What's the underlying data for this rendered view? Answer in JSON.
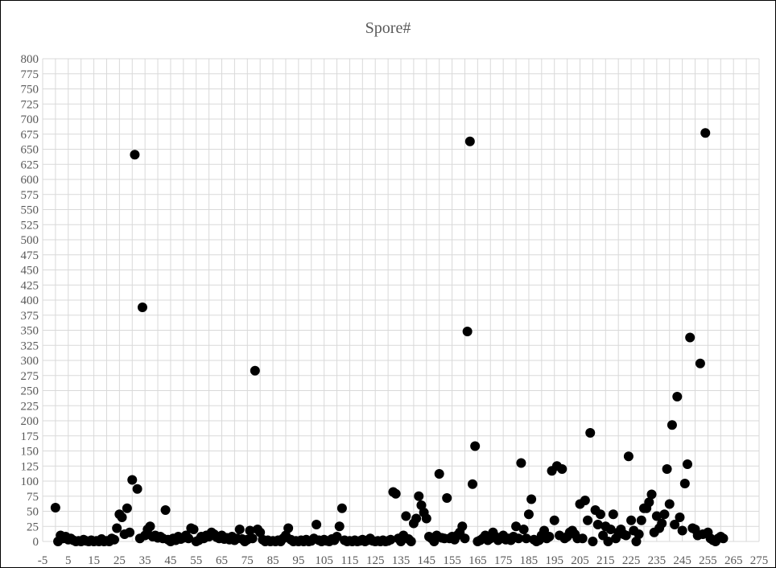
{
  "chart_data": {
    "type": "scatter",
    "title": "Spore#",
    "xlabel": "",
    "ylabel": "",
    "xlim": [
      -5,
      275
    ],
    "ylim": [
      0,
      800
    ],
    "x_ticks": [
      -5,
      5,
      15,
      25,
      35,
      45,
      55,
      65,
      75,
      85,
      95,
      105,
      115,
      125,
      135,
      145,
      155,
      165,
      175,
      185,
      195,
      205,
      215,
      225,
      235,
      245,
      255,
      265,
      275
    ],
    "y_ticks": [
      0,
      25,
      50,
      75,
      100,
      125,
      150,
      175,
      200,
      225,
      250,
      275,
      300,
      325,
      350,
      375,
      400,
      425,
      450,
      475,
      500,
      525,
      550,
      575,
      600,
      625,
      650,
      675,
      700,
      725,
      750,
      775,
      800
    ],
    "grid": true,
    "marker_color": "#000000",
    "series": [
      {
        "name": "",
        "points": [
          [
            0,
            56
          ],
          [
            1,
            0
          ],
          [
            2,
            10
          ],
          [
            3,
            5
          ],
          [
            4,
            8
          ],
          [
            5,
            3
          ],
          [
            6,
            5
          ],
          [
            7,
            2
          ],
          [
            8,
            0
          ],
          [
            9,
            1
          ],
          [
            10,
            0
          ],
          [
            11,
            3
          ],
          [
            12,
            1
          ],
          [
            13,
            0
          ],
          [
            14,
            2
          ],
          [
            15,
            0
          ],
          [
            16,
            1
          ],
          [
            17,
            0
          ],
          [
            18,
            4
          ],
          [
            19,
            0
          ],
          [
            20,
            1
          ],
          [
            21,
            0
          ],
          [
            22,
            5
          ],
          [
            23,
            3
          ],
          [
            24,
            22
          ],
          [
            25,
            45
          ],
          [
            26,
            40
          ],
          [
            27,
            12
          ],
          [
            28,
            55
          ],
          [
            29,
            15
          ],
          [
            30,
            102
          ],
          [
            31,
            641
          ],
          [
            32,
            87
          ],
          [
            33,
            5
          ],
          [
            34,
            388
          ],
          [
            35,
            10
          ],
          [
            36,
            20
          ],
          [
            37,
            25
          ],
          [
            38,
            8
          ],
          [
            39,
            10
          ],
          [
            40,
            6
          ],
          [
            41,
            8
          ],
          [
            42,
            5
          ],
          [
            43,
            52
          ],
          [
            44,
            3
          ],
          [
            45,
            0
          ],
          [
            46,
            5
          ],
          [
            47,
            2
          ],
          [
            48,
            8
          ],
          [
            49,
            4
          ],
          [
            50,
            6
          ],
          [
            51,
            10
          ],
          [
            52,
            5
          ],
          [
            53,
            22
          ],
          [
            54,
            20
          ],
          [
            55,
            0
          ],
          [
            56,
            2
          ],
          [
            57,
            8
          ],
          [
            58,
            5
          ],
          [
            59,
            10
          ],
          [
            60,
            8
          ],
          [
            61,
            15
          ],
          [
            62,
            12
          ],
          [
            63,
            7
          ],
          [
            64,
            5
          ],
          [
            65,
            10
          ],
          [
            66,
            4
          ],
          [
            67,
            6
          ],
          [
            68,
            3
          ],
          [
            69,
            8
          ],
          [
            70,
            2
          ],
          [
            71,
            5
          ],
          [
            72,
            20
          ],
          [
            73,
            4
          ],
          [
            74,
            0
          ],
          [
            75,
            3
          ],
          [
            76,
            18
          ],
          [
            77,
            5
          ],
          [
            78,
            283
          ],
          [
            79,
            20
          ],
          [
            80,
            15
          ],
          [
            81,
            3
          ],
          [
            82,
            0
          ],
          [
            83,
            2
          ],
          [
            84,
            0
          ],
          [
            85,
            1
          ],
          [
            86,
            0
          ],
          [
            87,
            2
          ],
          [
            88,
            0
          ],
          [
            89,
            5
          ],
          [
            90,
            10
          ],
          [
            91,
            22
          ],
          [
            92,
            3
          ],
          [
            93,
            0
          ],
          [
            94,
            1
          ],
          [
            95,
            0
          ],
          [
            96,
            2
          ],
          [
            97,
            0
          ],
          [
            98,
            3
          ],
          [
            99,
            0
          ],
          [
            100,
            1
          ],
          [
            101,
            5
          ],
          [
            102,
            28
          ],
          [
            103,
            2
          ],
          [
            104,
            0
          ],
          [
            105,
            3
          ],
          [
            106,
            1
          ],
          [
            107,
            0
          ],
          [
            108,
            4
          ],
          [
            109,
            2
          ],
          [
            110,
            8
          ],
          [
            111,
            25
          ],
          [
            112,
            55
          ],
          [
            113,
            2
          ],
          [
            114,
            0
          ],
          [
            115,
            1
          ],
          [
            116,
            0
          ],
          [
            117,
            2
          ],
          [
            118,
            0
          ],
          [
            119,
            1
          ],
          [
            120,
            3
          ],
          [
            121,
            0
          ],
          [
            122,
            2
          ],
          [
            123,
            5
          ],
          [
            124,
            1
          ],
          [
            125,
            0
          ],
          [
            126,
            1
          ],
          [
            127,
            0
          ],
          [
            128,
            2
          ],
          [
            129,
            0
          ],
          [
            130,
            1
          ],
          [
            131,
            3
          ],
          [
            132,
            82
          ],
          [
            133,
            79
          ],
          [
            134,
            5
          ],
          [
            135,
            0
          ],
          [
            136,
            10
          ],
          [
            137,
            42
          ],
          [
            138,
            4
          ],
          [
            139,
            0
          ],
          [
            140,
            30
          ],
          [
            141,
            38
          ],
          [
            142,
            75
          ],
          [
            143,
            60
          ],
          [
            144,
            48
          ],
          [
            145,
            38
          ],
          [
            146,
            8
          ],
          [
            147,
            5
          ],
          [
            148,
            0
          ],
          [
            149,
            10
          ],
          [
            150,
            112
          ],
          [
            151,
            6
          ],
          [
            152,
            5
          ],
          [
            153,
            72
          ],
          [
            154,
            5
          ],
          [
            155,
            8
          ],
          [
            156,
            3
          ],
          [
            157,
            10
          ],
          [
            158,
            15
          ],
          [
            159,
            25
          ],
          [
            160,
            5
          ],
          [
            161,
            348
          ],
          [
            162,
            663
          ],
          [
            163,
            95
          ],
          [
            164,
            158
          ],
          [
            165,
            0
          ],
          [
            166,
            2
          ],
          [
            167,
            5
          ],
          [
            168,
            10
          ],
          [
            169,
            2
          ],
          [
            170,
            5
          ],
          [
            171,
            15
          ],
          [
            172,
            8
          ],
          [
            173,
            2
          ],
          [
            174,
            5
          ],
          [
            175,
            10
          ],
          [
            176,
            3
          ],
          [
            177,
            5
          ],
          [
            178,
            2
          ],
          [
            179,
            8
          ],
          [
            180,
            25
          ],
          [
            181,
            5
          ],
          [
            182,
            130
          ],
          [
            183,
            20
          ],
          [
            184,
            5
          ],
          [
            185,
            45
          ],
          [
            186,
            70
          ],
          [
            187,
            3
          ],
          [
            188,
            0
          ],
          [
            189,
            2
          ],
          [
            190,
            10
          ],
          [
            191,
            18
          ],
          [
            192,
            5
          ],
          [
            193,
            8
          ],
          [
            194,
            117
          ],
          [
            195,
            35
          ],
          [
            196,
            125
          ],
          [
            197,
            10
          ],
          [
            198,
            120
          ],
          [
            199,
            5
          ],
          [
            200,
            8
          ],
          [
            201,
            15
          ],
          [
            202,
            18
          ],
          [
            203,
            12
          ],
          [
            204,
            5
          ],
          [
            205,
            62
          ],
          [
            206,
            5
          ],
          [
            207,
            68
          ],
          [
            208,
            35
          ],
          [
            209,
            180
          ],
          [
            210,
            0
          ],
          [
            211,
            52
          ],
          [
            212,
            28
          ],
          [
            213,
            45
          ],
          [
            214,
            10
          ],
          [
            215,
            25
          ],
          [
            216,
            0
          ],
          [
            217,
            20
          ],
          [
            218,
            45
          ],
          [
            219,
            5
          ],
          [
            220,
            15
          ],
          [
            221,
            20
          ],
          [
            222,
            12
          ],
          [
            223,
            10
          ],
          [
            224,
            141
          ],
          [
            225,
            35
          ],
          [
            226,
            18
          ],
          [
            227,
            0
          ],
          [
            228,
            12
          ],
          [
            229,
            35
          ],
          [
            230,
            55
          ],
          [
            231,
            55
          ],
          [
            232,
            65
          ],
          [
            233,
            78
          ],
          [
            234,
            15
          ],
          [
            235,
            42
          ],
          [
            236,
            22
          ],
          [
            237,
            30
          ],
          [
            238,
            45
          ],
          [
            239,
            120
          ],
          [
            240,
            62
          ],
          [
            241,
            193
          ],
          [
            242,
            28
          ],
          [
            243,
            240
          ],
          [
            244,
            40
          ],
          [
            245,
            18
          ],
          [
            246,
            96
          ],
          [
            247,
            128
          ],
          [
            248,
            338
          ],
          [
            249,
            22
          ],
          [
            250,
            20
          ],
          [
            251,
            10
          ],
          [
            252,
            295
          ],
          [
            253,
            12
          ],
          [
            254,
            677
          ],
          [
            255,
            15
          ],
          [
            256,
            5
          ],
          [
            257,
            2
          ],
          [
            258,
            0
          ],
          [
            259,
            5
          ],
          [
            260,
            8
          ],
          [
            261,
            5
          ]
        ]
      }
    ]
  }
}
